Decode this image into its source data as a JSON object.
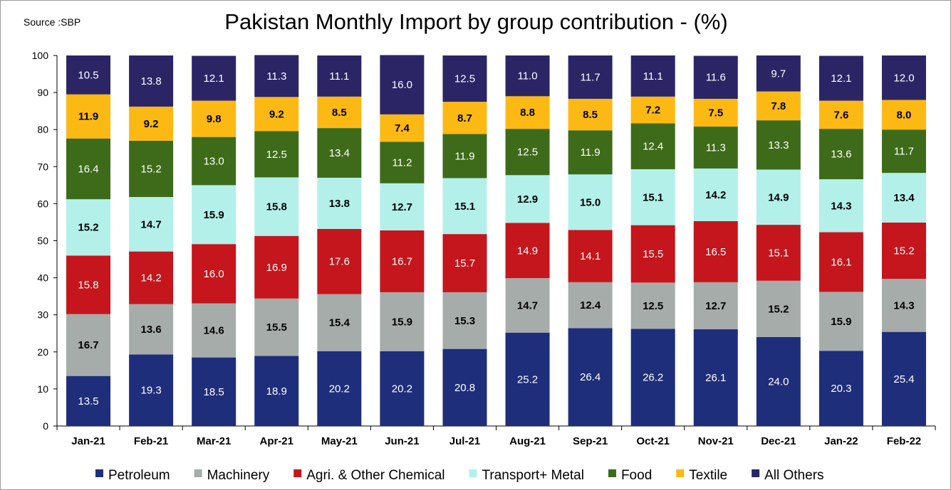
{
  "source": "Source :SBP",
  "chart_data": {
    "type": "bar",
    "stacked": true,
    "title": "Pakistan Monthly Import by group contribution - (%)",
    "xlabel": "",
    "ylabel": "",
    "ylim": [
      0,
      100
    ],
    "yticks": [
      0,
      10,
      20,
      30,
      40,
      50,
      60,
      70,
      80,
      90,
      100
    ],
    "grid": false,
    "legend_position": "bottom",
    "categories": [
      "Jan-21",
      "Feb-21",
      "Mar-21",
      "Apr-21",
      "May-21",
      "Jun-21",
      "Jul-21",
      "Aug-21",
      "Sep-21",
      "Oct-21",
      "Nov-21",
      "Dec-21",
      "Jan-22",
      "Feb-22"
    ],
    "series": [
      {
        "name": "Petroleum",
        "color": "#1F2E7A",
        "label_color": "#ffffff",
        "values": [
          13.5,
          19.3,
          18.5,
          18.9,
          20.2,
          20.2,
          20.8,
          25.2,
          26.4,
          26.2,
          26.1,
          24.0,
          20.3,
          25.4
        ],
        "bold": [
          false,
          false,
          false,
          false,
          false,
          false,
          false,
          false,
          false,
          false,
          false,
          false,
          false,
          false
        ]
      },
      {
        "name": "Machinery",
        "color": "#A6ACAA",
        "label_color": "#000000",
        "values": [
          16.7,
          13.6,
          14.6,
          15.5,
          15.4,
          15.9,
          15.3,
          14.7,
          12.4,
          12.5,
          12.7,
          15.2,
          15.9,
          14.3
        ],
        "bold": [
          true,
          true,
          true,
          true,
          true,
          true,
          true,
          true,
          true,
          true,
          true,
          true,
          true,
          true
        ]
      },
      {
        "name": "Agri. & Other Chemical",
        "color": "#C4161C",
        "label_color": "#ffffff",
        "values": [
          15.8,
          14.2,
          16.0,
          16.9,
          17.6,
          16.7,
          15.7,
          14.9,
          14.1,
          15.5,
          16.5,
          15.1,
          16.1,
          15.2
        ],
        "bold": [
          false,
          false,
          false,
          false,
          false,
          false,
          false,
          false,
          false,
          false,
          false,
          false,
          false,
          false
        ]
      },
      {
        "name": "Transport+ Metal",
        "color": "#B3F0EA",
        "label_color": "#000000",
        "values": [
          15.2,
          14.7,
          15.9,
          15.8,
          13.8,
          12.7,
          15.1,
          12.9,
          15.0,
          15.1,
          14.2,
          14.9,
          14.3,
          13.4
        ],
        "bold": [
          true,
          true,
          true,
          true,
          true,
          true,
          true,
          true,
          true,
          true,
          true,
          true,
          true,
          true
        ]
      },
      {
        "name": "Food",
        "color": "#3E6B19",
        "label_color": "#ffffff",
        "values": [
          16.4,
          15.2,
          13.0,
          12.5,
          13.4,
          11.2,
          11.9,
          12.5,
          11.9,
          12.4,
          11.3,
          13.3,
          13.6,
          11.7
        ],
        "bold": [
          false,
          false,
          false,
          false,
          false,
          false,
          false,
          false,
          false,
          false,
          false,
          false,
          false,
          false
        ]
      },
      {
        "name": "Textile",
        "color": "#FDB913",
        "label_color": "#000000",
        "values": [
          11.9,
          9.2,
          9.8,
          9.2,
          8.5,
          7.4,
          8.7,
          8.8,
          8.5,
          7.2,
          7.5,
          7.8,
          7.6,
          8.0
        ],
        "bold": [
          true,
          true,
          true,
          true,
          true,
          true,
          true,
          true,
          true,
          true,
          true,
          true,
          true,
          true
        ]
      },
      {
        "name": "All Others",
        "color": "#2B2566",
        "label_color": "#ffffff",
        "values": [
          10.5,
          13.8,
          12.1,
          11.3,
          11.1,
          16.0,
          12.5,
          11.0,
          11.7,
          11.1,
          11.6,
          9.7,
          12.1,
          12.0
        ],
        "bold": [
          false,
          false,
          false,
          false,
          false,
          false,
          false,
          false,
          false,
          false,
          false,
          false,
          false,
          false
        ]
      }
    ]
  }
}
